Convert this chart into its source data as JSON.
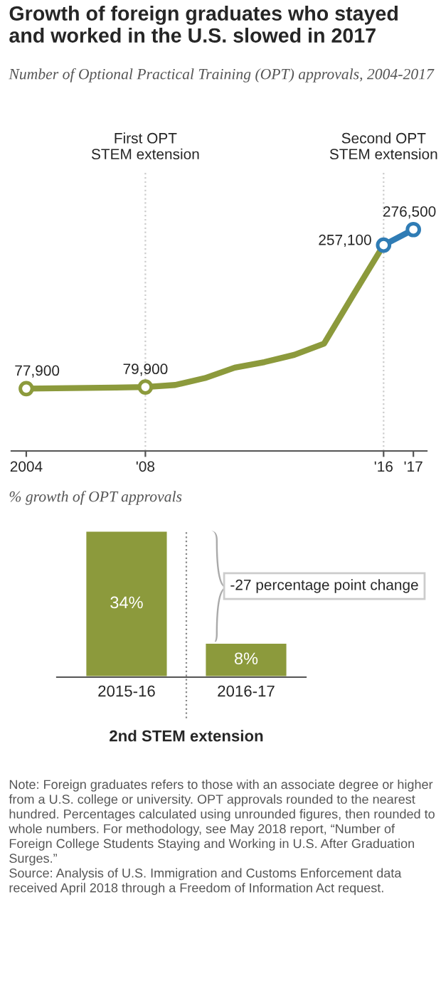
{
  "chart_data": [
    {
      "type": "line",
      "title": "Growth of foreign graduates who stayed and worked in the U.S. slowed in 2017",
      "subtitle": "Number of Optional Practical Training (OPT) approvals, 2004-2017",
      "xlim": [
        2003.5,
        2017.45
      ],
      "ylim": [
        0,
        350000
      ],
      "xticks": [
        2004,
        {
          "value": 2008,
          "label": "'08"
        },
        {
          "value": 2016,
          "label": "'16"
        },
        {
          "value": 2017,
          "label": "'17"
        }
      ],
      "tick_labels": "x",
      "ref_lines": [
        {
          "axis": "x",
          "value": 2008,
          "label": "First OPT\nSTEM extension",
          "line_style": "dotted",
          "color": "#cccccc"
        },
        {
          "axis": "x",
          "value": 2016,
          "label": "Second OPT\nSTEM extension",
          "line_style": "dotted",
          "color": "#cccccc"
        }
      ],
      "series": [
        {
          "color": "#8c9a3c",
          "x": [
            2004,
            2005,
            2006,
            2007,
            2008,
            2009,
            2010,
            2011,
            2012,
            2013,
            2014,
            2015,
            2016
          ],
          "values": [
            77900,
            78300,
            78700,
            79200,
            79900,
            82400,
            91000,
            104000,
            111000,
            120000,
            134000,
            196000,
            257100
          ],
          "value_labels": [
            "77,900",
            null,
            null,
            null,
            "79,900",
            null,
            null,
            null,
            null,
            null,
            null,
            null,
            null
          ]
        },
        {
          "color": "#2f7cb5",
          "marker": "circle",
          "x": [
            2016,
            2017
          ],
          "values": [
            257100,
            276500
          ],
          "value_labels": [
            "257,100",
            "276,500"
          ]
        }
      ]
    },
    {
      "type": "bar",
      "title": "% growth of OPT approvals",
      "categories": [
        "2015-16",
        "2016-17"
      ],
      "values": [
        34,
        8
      ],
      "value_labels": [
        "34%",
        "8%"
      ],
      "color": "#8c9a3c",
      "ylim": [
        0,
        34
      ],
      "tick_labels": "x",
      "annotations": [
        "-27 percentage point change",
        "2nd STEM extension",
        "Note: Foreign graduates refers to those with an associate degree or higher from a U.S. college or university. OPT approvals rounded to the nearest hundred. Percentages calculated using unrounded figures, then rounded to whole numbers. For methodology, see May 2018 report, “Number of Foreign College Students Staying and Working in U.S. After Graduation Surges.”\nSource: Analysis of U.S. Immigration and Customs Enforcement data received April 2018 through a Freedom of Information Act request."
      ]
    }
  ]
}
